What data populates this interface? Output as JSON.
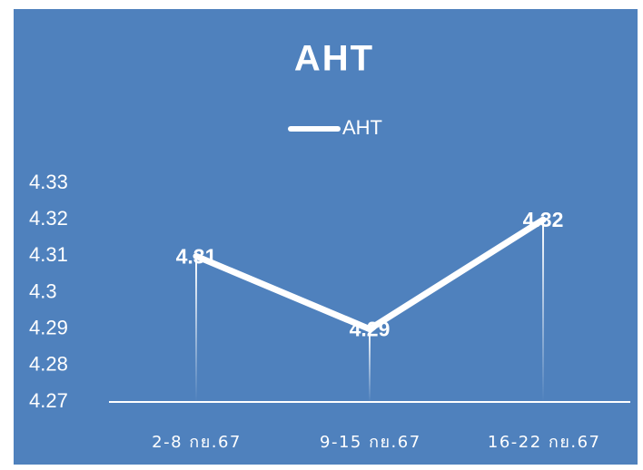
{
  "chart_data": {
    "type": "line",
    "title": "AHT",
    "categories": [
      "2-8 กย.67",
      "9-15 กย.67",
      "16-22 กย.67"
    ],
    "series": [
      {
        "name": "AHT",
        "color": "#ffffff",
        "values": [
          4.31,
          4.29,
          4.32
        ]
      }
    ],
    "ylim": [
      4.27,
      4.33
    ],
    "yticks": [
      4.27,
      4.28,
      4.29,
      4.3,
      4.31,
      4.32,
      4.33
    ],
    "grid": false,
    "legend": "top"
  }
}
